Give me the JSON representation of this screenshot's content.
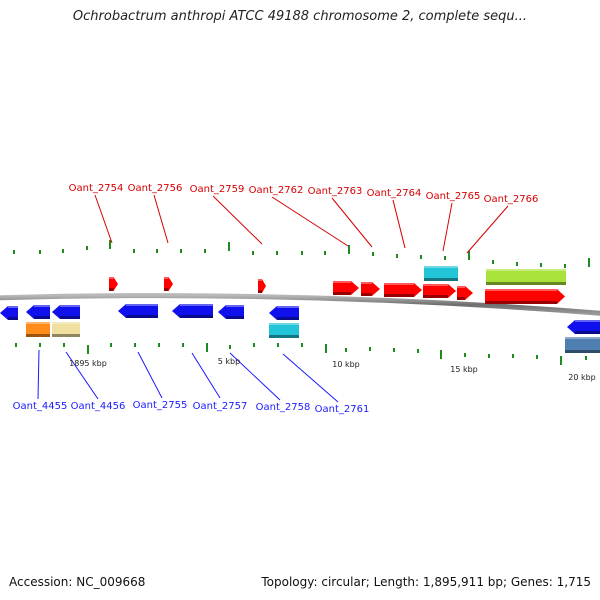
{
  "title": "Ochrobactrum anthropi ATCC 49188 chromosome 2, complete sequ...",
  "footer": {
    "accession": "Accession: NC_009668",
    "summary": "Topology: circular; Length: 1,895,911 bp; Genes: 1,715"
  },
  "scale_labels": [
    "1895 kbp",
    "5 kbp",
    "10 kbp",
    "15 kbp",
    "20 kbp"
  ],
  "colors": {
    "backbone": "#8c8c8c",
    "forward_label": "#d40000",
    "reverse_label": "#1a1aff",
    "tick": "#1f8a1f",
    "forward_gene": "#ff0000",
    "reverse_gene": "#1010ee",
    "cyan_gene": "#22c4d8",
    "lime_gene": "#a8e23a",
    "orange_gene": "#ff8c1a",
    "khaki_gene": "#efe0a0",
    "steel_gene": "#4f7fb0"
  },
  "forward_genes": [
    {
      "name": "Oant_2754",
      "color": "#ff0000"
    },
    {
      "name": "Oant_2756",
      "color": "#ff0000"
    },
    {
      "name": "Oant_2759",
      "color": "#ff0000"
    },
    {
      "name": "Oant_2762",
      "color": "#ff0000"
    },
    {
      "name": "Oant_2763",
      "color": "#ff0000"
    },
    {
      "name": "Oant_2764",
      "color": "#ff0000"
    },
    {
      "name": "Oant_2765",
      "color": "#22c4d8"
    },
    {
      "name": "Oant_2766",
      "color": "#a8e23a"
    }
  ],
  "reverse_genes": [
    {
      "name": "Oant_4455",
      "color": "#ff8c1a"
    },
    {
      "name": "Oant_4456",
      "color": "#efe0a0"
    },
    {
      "name": "Oant_2755",
      "color": "#1010ee"
    },
    {
      "name": "Oant_2757",
      "color": "#1010ee"
    },
    {
      "name": "Oant_2758",
      "color": "#22c4d8"
    },
    {
      "name": "Oant_2761",
      "color": "#1010ee"
    }
  ]
}
